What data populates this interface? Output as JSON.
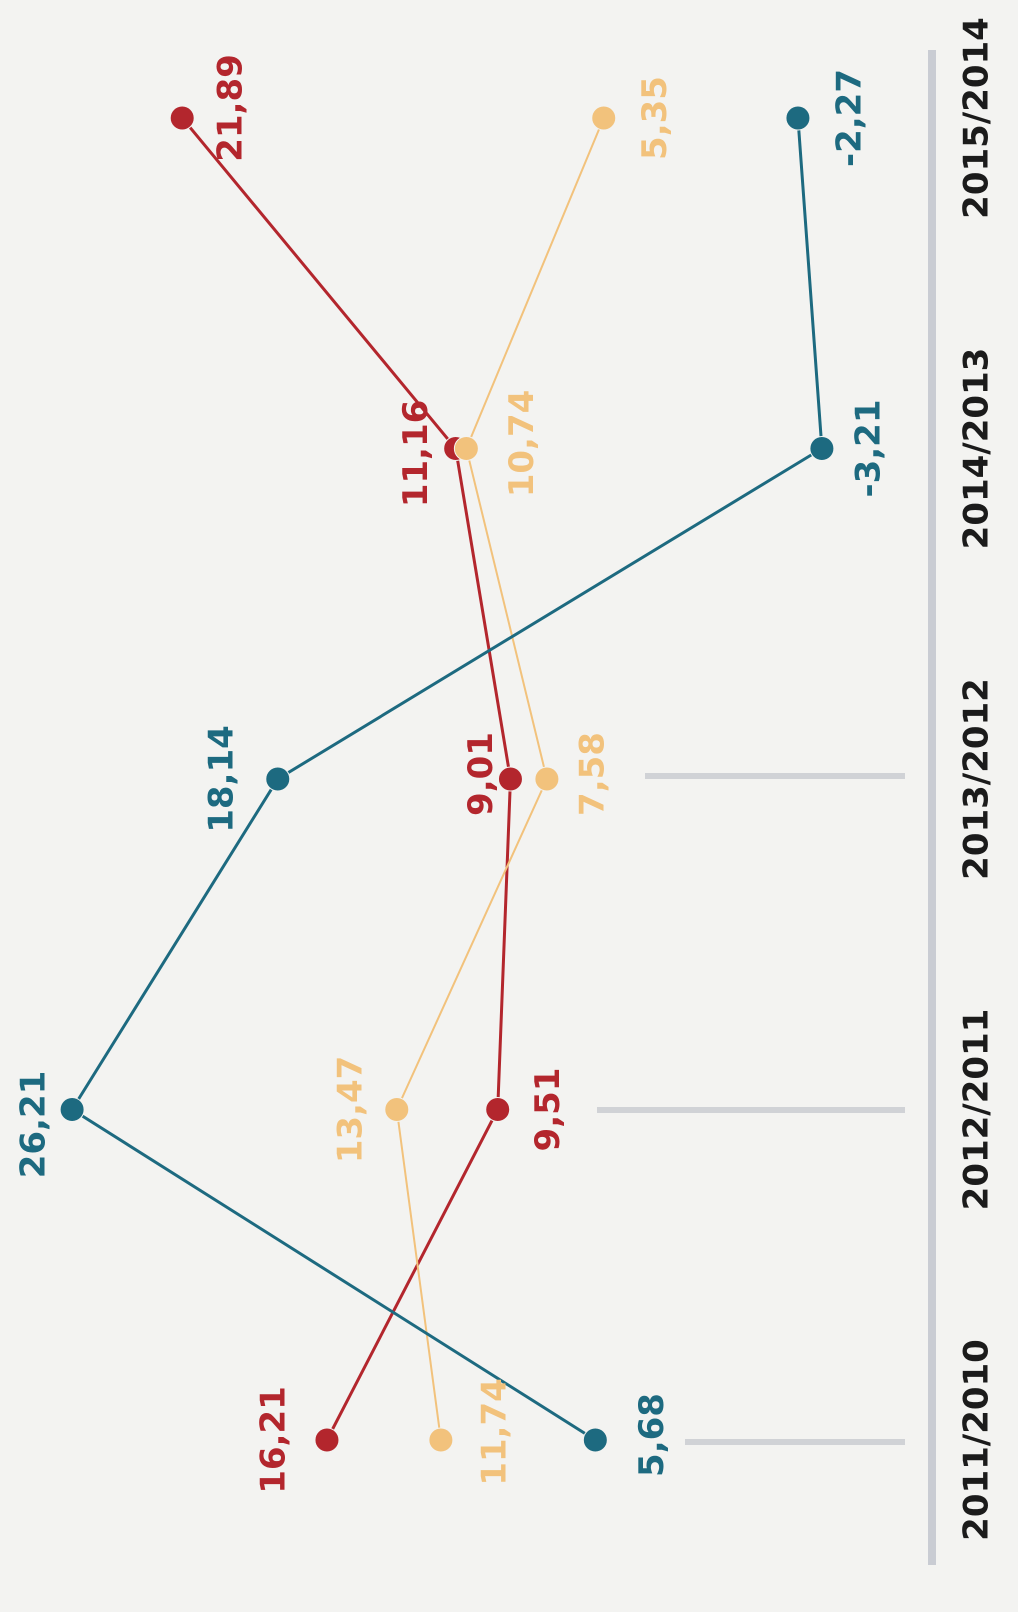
{
  "chart_data": {
    "type": "line",
    "categories": [
      "2011/2010",
      "2012/2011",
      "2013/2012",
      "2014/2013",
      "2015/2014"
    ],
    "series": [
      {
        "color": "#b3262d",
        "values": [
          16.21,
          9.51,
          9.01,
          11.16,
          21.89
        ],
        "value_labels": [
          "16,21",
          "9,51",
          "9,01",
          "11,16",
          "21,89"
        ]
      },
      {
        "color": "#f2c27c",
        "values": [
          11.74,
          13.47,
          7.58,
          10.74,
          5.35
        ],
        "value_labels": [
          "11,74",
          "13,47",
          "7,58",
          "10,74",
          "5,35"
        ]
      },
      {
        "color": "#1d6a80",
        "values": [
          5.68,
          26.21,
          18.14,
          -3.21,
          -2.27
        ],
        "value_labels": [
          "5,68",
          "26,21",
          "18,14",
          "-3,21",
          "-2,27"
        ]
      }
    ],
    "ylim": [
      -6,
      29
    ]
  }
}
